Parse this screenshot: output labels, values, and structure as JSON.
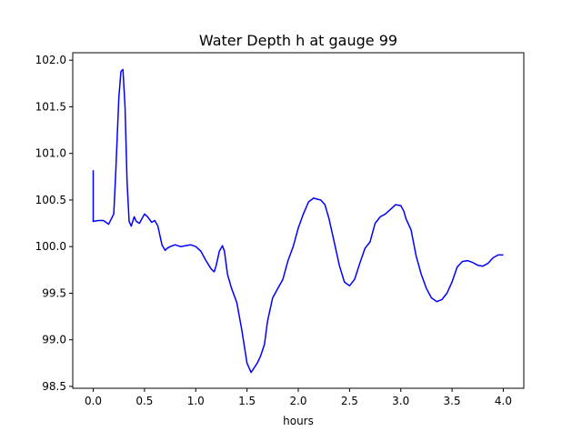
{
  "chart_data": {
    "type": "line",
    "title": "Water Depth h at gauge 99",
    "xlabel": "hours",
    "ylabel": "",
    "xlim": [
      -0.2,
      4.2
    ],
    "ylim": [
      98.48,
      102.08
    ],
    "grid": false,
    "x_ticks": [
      0.0,
      0.5,
      1.0,
      1.5,
      2.0,
      2.5,
      3.0,
      3.5,
      4.0
    ],
    "x_tick_labels": [
      "0.0",
      "0.5",
      "1.0",
      "1.5",
      "2.0",
      "2.5",
      "3.0",
      "3.5",
      "4.0"
    ],
    "y_ticks": [
      98.5,
      99.0,
      99.5,
      100.0,
      100.5,
      101.0,
      101.5,
      102.0
    ],
    "y_tick_labels": [
      "98.5",
      "99.0",
      "99.5",
      "100.0",
      "100.5",
      "101.0",
      "101.5",
      "102.0"
    ],
    "series": [
      {
        "name": "h",
        "color": "#0000ff",
        "x": [
          0.0,
          0.0,
          0.05,
          0.1,
          0.15,
          0.2,
          0.22,
          0.25,
          0.27,
          0.29,
          0.31,
          0.33,
          0.35,
          0.37,
          0.4,
          0.42,
          0.45,
          0.5,
          0.53,
          0.57,
          0.6,
          0.63,
          0.67,
          0.7,
          0.72,
          0.75,
          0.8,
          0.85,
          0.9,
          0.95,
          1.0,
          1.05,
          1.1,
          1.15,
          1.18,
          1.2,
          1.23,
          1.26,
          1.28,
          1.31,
          1.35,
          1.4,
          1.45,
          1.5,
          1.54,
          1.57,
          1.6,
          1.63,
          1.67,
          1.7,
          1.75,
          1.8,
          1.85,
          1.9,
          1.95,
          2.0,
          2.05,
          2.1,
          2.15,
          2.18,
          2.22,
          2.26,
          2.3,
          2.35,
          2.4,
          2.45,
          2.5,
          2.55,
          2.6,
          2.65,
          2.7,
          2.75,
          2.8,
          2.85,
          2.9,
          2.95,
          3.0,
          3.03,
          3.05,
          3.1,
          3.15,
          3.2,
          3.25,
          3.3,
          3.35,
          3.4,
          3.45,
          3.5,
          3.55,
          3.6,
          3.65,
          3.7,
          3.75,
          3.8,
          3.85,
          3.9,
          3.95,
          4.0
        ],
        "values": [
          100.82,
          100.27,
          100.28,
          100.28,
          100.24,
          100.35,
          100.8,
          101.6,
          101.88,
          101.9,
          101.5,
          100.7,
          100.27,
          100.22,
          100.32,
          100.27,
          100.25,
          100.35,
          100.32,
          100.26,
          100.28,
          100.22,
          100.02,
          99.96,
          99.98,
          100.0,
          100.02,
          100.0,
          100.01,
          100.02,
          100.0,
          99.95,
          99.85,
          99.76,
          99.73,
          99.8,
          99.95,
          100.01,
          99.95,
          99.7,
          99.55,
          99.4,
          99.1,
          98.75,
          98.65,
          98.7,
          98.75,
          98.82,
          98.95,
          99.2,
          99.45,
          99.55,
          99.65,
          99.85,
          100.0,
          100.2,
          100.35,
          100.48,
          100.52,
          100.51,
          100.5,
          100.45,
          100.3,
          100.05,
          99.8,
          99.62,
          99.58,
          99.65,
          99.82,
          99.98,
          100.05,
          100.25,
          100.32,
          100.35,
          100.4,
          100.45,
          100.44,
          100.38,
          100.3,
          100.18,
          99.9,
          99.7,
          99.55,
          99.45,
          99.41,
          99.43,
          99.5,
          99.62,
          99.78,
          99.84,
          99.85,
          99.83,
          99.8,
          99.79,
          99.82,
          99.88,
          99.91,
          99.91
        ]
      }
    ]
  }
}
